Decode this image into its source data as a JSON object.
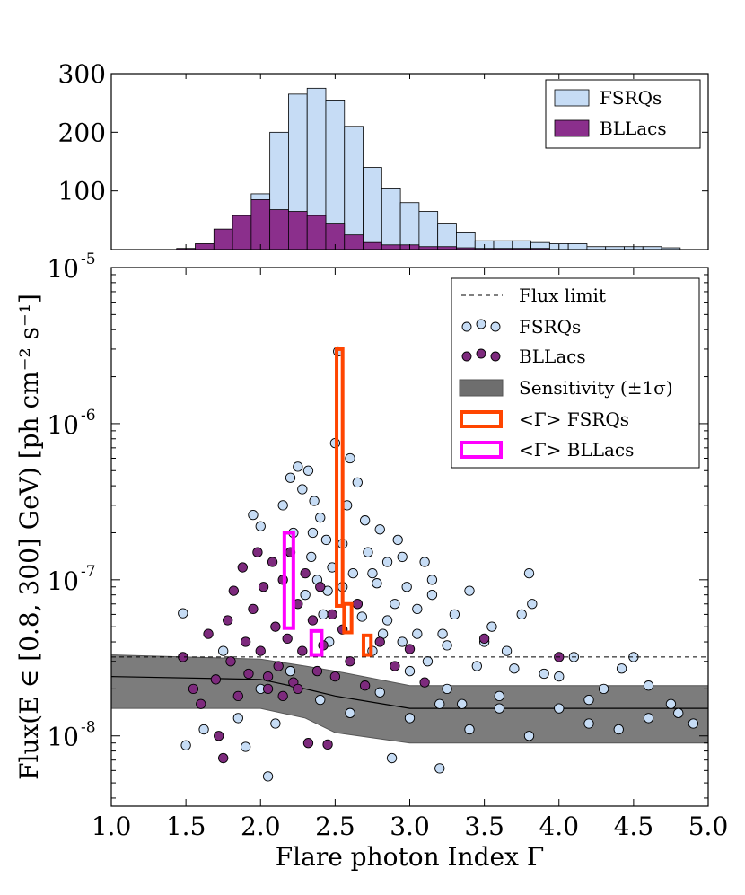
{
  "chart_data": [
    {
      "type": "bar",
      "panel": "histogram",
      "x": [
        1.375,
        1.5,
        1.625,
        1.75,
        1.875,
        2.0,
        2.125,
        2.25,
        2.375,
        2.5,
        2.625,
        2.75,
        2.875,
        3.0,
        3.125,
        3.25,
        3.375,
        3.5,
        3.625,
        3.75,
        3.875,
        4.0,
        4.125,
        4.25,
        4.375,
        4.5,
        4.625,
        4.75,
        4.875
      ],
      "series": [
        {
          "name": "FSRQs",
          "color": "#c6dcf5",
          "values": [
            0,
            0,
            0,
            2,
            5,
            95,
            200,
            265,
            275,
            255,
            210,
            140,
            105,
            80,
            65,
            45,
            30,
            15,
            15,
            15,
            12,
            10,
            10,
            5,
            5,
            5,
            5,
            3,
            0
          ]
        },
        {
          "name": "BLLacs",
          "color": "#8b2f8c",
          "values": [
            0,
            2,
            10,
            35,
            58,
            85,
            68,
            65,
            58,
            45,
            25,
            12,
            8,
            8,
            5,
            5,
            3,
            2,
            2,
            2,
            2,
            0,
            0,
            0,
            0,
            0,
            0,
            0,
            0
          ]
        }
      ],
      "yticks": [
        "100",
        "200",
        "300"
      ],
      "ylim": [
        0,
        300
      ],
      "legend": {
        "position": "top-right",
        "entries": [
          "FSRQs",
          "BLLacs"
        ]
      }
    },
    {
      "type": "scatter",
      "panel": "flux-vs-index",
      "xlabel": "Flare photon Index Γ",
      "ylabel": "Flux(E ∈ [0.8, 300] GeV) [ph cm⁻² s⁻¹]",
      "xlim": [
        1.0,
        5.0
      ],
      "ylim_log10": [
        -8.45,
        -5.0
      ],
      "yscale": "log",
      "xticks": [
        "1.0",
        "1.5",
        "2.0",
        "2.5",
        "3.0",
        "3.5",
        "4.0",
        "4.5",
        "5.0"
      ],
      "yticks": [
        {
          "base": "10",
          "exp": "-5",
          "value": 1e-05
        },
        {
          "base": "10",
          "exp": "-6",
          "value": 1e-06
        },
        {
          "base": "10",
          "exp": "-7",
          "value": 1e-07
        },
        {
          "base": "10",
          "exp": "-8",
          "value": 1e-08
        }
      ],
      "flux_limit": 3.2e-08,
      "sensitivity": {
        "x": [
          1.0,
          2.0,
          2.3,
          2.5,
          3.0,
          3.5,
          4.0,
          5.0
        ],
        "mid": [
          2.4e-08,
          2.3e-08,
          2e-08,
          1.8e-08,
          1.5e-08,
          1.5e-08,
          1.5e-08,
          1.5e-08
        ],
        "low": [
          1.5e-08,
          1.5e-08,
          1.3e-08,
          1.05e-08,
          9e-09,
          9e-09,
          9e-09,
          9e-09
        ],
        "high": [
          3.3e-08,
          3.1e-08,
          2.8e-08,
          2.6e-08,
          2.1e-08,
          2.1e-08,
          2.1e-08,
          2.1e-08
        ]
      },
      "series": [
        {
          "name": "FSRQs",
          "color": "#c6dcf5",
          "points": [
            [
              1.48,
              6.1e-08
            ],
            [
              1.5,
              8.7e-09
            ],
            [
              1.62,
              1.1e-08
            ],
            [
              1.75,
              3.5e-08
            ],
            [
              1.85,
              1.3e-08
            ],
            [
              1.9,
              8.5e-09
            ],
            [
              1.95,
              2.6e-07
            ],
            [
              2.0,
              2.2e-07
            ],
            [
              2.05,
              5.5e-09
            ],
            [
              2.1,
              1.2e-08
            ],
            [
              2.15,
              3e-07
            ],
            [
              2.2,
              4.5e-07
            ],
            [
              2.22,
              2e-07
            ],
            [
              2.25,
              5.3e-07
            ],
            [
              2.28,
              3.8e-07
            ],
            [
              2.3,
              8e-08
            ],
            [
              2.32,
              5e-07
            ],
            [
              2.34,
              1.4e-07
            ],
            [
              2.36,
              3.2e-07
            ],
            [
              2.38,
              1e-07
            ],
            [
              2.4,
              2.5e-07
            ],
            [
              2.42,
              6e-08
            ],
            [
              2.44,
              1.8e-07
            ],
            [
              2.46,
              4e-08
            ],
            [
              2.48,
              1.2e-07
            ],
            [
              2.5,
              7.5e-07
            ],
            [
              2.52,
              2.9e-06
            ],
            [
              2.55,
              9e-08
            ],
            [
              2.58,
              3e-07
            ],
            [
              2.6,
              6e-07
            ],
            [
              2.62,
              1.1e-07
            ],
            [
              2.65,
              4.2e-07
            ],
            [
              2.68,
              5.8e-08
            ],
            [
              2.7,
              2.4e-07
            ],
            [
              2.72,
              1.5e-07
            ],
            [
              2.75,
              3.5e-08
            ],
            [
              2.78,
              9.5e-08
            ],
            [
              2.8,
              2.1e-07
            ],
            [
              2.82,
              4.5e-08
            ],
            [
              2.85,
              1.3e-07
            ],
            [
              2.88,
              7.2e-09
            ],
            [
              2.9,
              7e-08
            ],
            [
              2.92,
              1.8e-07
            ],
            [
              2.95,
              4e-08
            ],
            [
              2.98,
              9e-08
            ],
            [
              3.0,
              2.6e-08
            ],
            [
              3.05,
              6.5e-08
            ],
            [
              3.1,
              1.3e-07
            ],
            [
              3.12,
              3e-08
            ],
            [
              3.15,
              8e-08
            ],
            [
              3.2,
              6.2e-09
            ],
            [
              3.22,
              4.5e-08
            ],
            [
              3.25,
              2e-08
            ],
            [
              3.3,
              6e-08
            ],
            [
              3.35,
              1.6e-08
            ],
            [
              3.4,
              8.5e-08
            ],
            [
              3.45,
              2.8e-08
            ],
            [
              3.5,
              4e-08
            ],
            [
              3.55,
              5e-08
            ],
            [
              3.6,
              1.8e-08
            ],
            [
              3.65,
              3.5e-08
            ],
            [
              3.7,
              2.7e-08
            ],
            [
              3.75,
              6e-08
            ],
            [
              3.8,
              1.1e-07
            ],
            [
              3.82,
              7e-08
            ],
            [
              3.9,
              2.5e-08
            ],
            [
              4.0,
              1.5e-08
            ],
            [
              4.1,
              3.2e-08
            ],
            [
              4.2,
              1.7e-08
            ],
            [
              4.3,
              2e-08
            ],
            [
              4.42,
              2.7e-08
            ],
            [
              4.5,
              3.2e-08
            ],
            [
              4.6,
              1.3e-08
            ],
            [
              4.75,
              1.6e-08
            ],
            [
              4.9,
              1.2e-08
            ],
            [
              2.0,
              2e-08
            ],
            [
              2.2,
              2.6e-08
            ],
            [
              2.4,
              1.7e-08
            ],
            [
              2.6,
              1.4e-08
            ],
            [
              2.8,
              1.9e-08
            ],
            [
              3.0,
              1.3e-08
            ],
            [
              3.2,
              1.6e-08
            ],
            [
              3.4,
              1.1e-08
            ],
            [
              3.6,
              1.5e-08
            ],
            [
              3.8,
              1e-08
            ],
            [
              4.0,
              2.4e-08
            ],
            [
              4.2,
              1.2e-08
            ],
            [
              4.4,
              1.1e-08
            ],
            [
              4.6,
              2.1e-08
            ],
            [
              4.8,
              1.4e-08
            ],
            [
              2.35,
              2e-07
            ],
            [
              2.45,
              8.5e-08
            ],
            [
              2.55,
              1.7e-07
            ],
            [
              2.65,
              7e-08
            ],
            [
              2.75,
              1.1e-07
            ],
            [
              2.85,
              5.5e-08
            ],
            [
              2.95,
              1.4e-07
            ],
            [
              3.05,
              4.5e-08
            ],
            [
              3.15,
              1e-07
            ],
            [
              3.25,
              3.8e-08
            ]
          ]
        },
        {
          "name": "BLLacs",
          "color": "#7d2a7d",
          "points": [
            [
              1.48,
              3.2e-08
            ],
            [
              1.55,
              2e-08
            ],
            [
              1.6,
              1.6e-08
            ],
            [
              1.65,
              4.5e-08
            ],
            [
              1.7,
              2.3e-08
            ],
            [
              1.72,
              1e-08
            ],
            [
              1.75,
              7.2e-09
            ],
            [
              1.78,
              5.5e-08
            ],
            [
              1.8,
              3e-08
            ],
            [
              1.82,
              8.5e-08
            ],
            [
              1.85,
              1.8e-08
            ],
            [
              1.88,
              1.2e-07
            ],
            [
              1.9,
              4e-08
            ],
            [
              1.92,
              2.5e-08
            ],
            [
              1.95,
              6.5e-08
            ],
            [
              1.98,
              1.5e-07
            ],
            [
              2.0,
              3.5e-08
            ],
            [
              2.02,
              9e-08
            ],
            [
              2.05,
              2e-08
            ],
            [
              2.08,
              1.3e-07
            ],
            [
              2.1,
              5e-08
            ],
            [
              2.12,
              2.8e-08
            ],
            [
              2.15,
              1e-07
            ],
            [
              2.18,
              4.2e-08
            ],
            [
              2.2,
              1.5e-07
            ],
            [
              2.22,
              2.2e-08
            ],
            [
              2.25,
              7e-08
            ],
            [
              2.28,
              3.5e-08
            ],
            [
              2.3,
              1.1e-07
            ],
            [
              2.32,
              9e-09
            ],
            [
              2.35,
              5.5e-08
            ],
            [
              2.38,
              2.6e-08
            ],
            [
              2.4,
              9e-08
            ],
            [
              2.42,
              3.8e-08
            ],
            [
              2.45,
              8.8e-09
            ],
            [
              2.48,
              6e-08
            ],
            [
              2.5,
              2.4e-08
            ],
            [
              2.55,
              4.8e-08
            ],
            [
              2.6,
              3e-08
            ],
            [
              2.65,
              7e-08
            ],
            [
              2.7,
              2.1e-08
            ],
            [
              2.8,
              4e-08
            ],
            [
              2.9,
              2.8e-08
            ],
            [
              3.0,
              3.6e-08
            ],
            [
              3.1,
              2.2e-08
            ],
            [
              3.5,
              4.2e-08
            ],
            [
              4.0,
              3.2e-08
            ],
            [
              2.05,
              2.4e-08
            ],
            [
              2.15,
              1.8e-08
            ],
            [
              2.25,
              2e-08
            ]
          ]
        }
      ],
      "mean_index_boxes": [
        {
          "group": "FSRQs",
          "color": "#ff4500",
          "boxes": [
            {
              "x_range": [
                2.51,
                2.55
              ],
              "y_range": [
                6.8e-08,
                3e-06
              ]
            },
            {
              "x_range": [
                2.56,
                2.61
              ],
              "y_range": [
                4.6e-08,
                7e-08
              ]
            },
            {
              "x_range": [
                2.69,
                2.74
              ],
              "y_range": [
                3.3e-08,
                4.4e-08
              ]
            }
          ]
        },
        {
          "group": "BLLacs",
          "color": "#ff00ff",
          "boxes": [
            {
              "x_range": [
                2.16,
                2.22
              ],
              "y_range": [
                4.9e-08,
                2e-07
              ]
            },
            {
              "x_range": [
                2.34,
                2.41
              ],
              "y_range": [
                3.3e-08,
                4.7e-08
              ]
            }
          ]
        }
      ],
      "legend": {
        "position": "top-right",
        "entries": [
          "Flux limit",
          "FSRQs",
          "BLLacs",
          "Sensitivity (±1σ)",
          "<Γ> FSRQs",
          "<Γ> BLLacs"
        ]
      }
    }
  ]
}
